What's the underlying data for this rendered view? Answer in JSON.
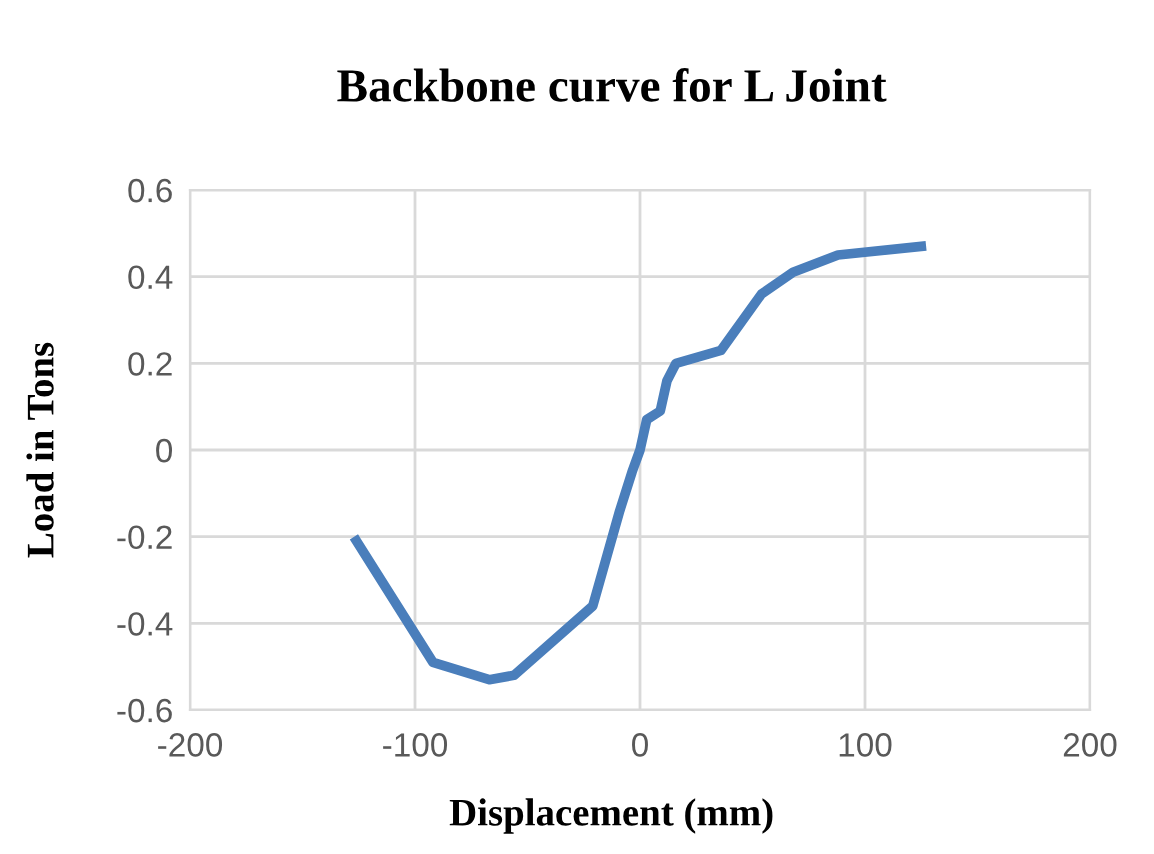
{
  "chart_data": {
    "type": "line",
    "title": "Backbone curve for L Joint",
    "xlabel": "Displacement (mm)",
    "ylabel": "Load in Tons",
    "x": [
      -126,
      -92,
      -67,
      -56,
      -21,
      -9,
      -3.5,
      0,
      3,
      9,
      12,
      16,
      36,
      54,
      68,
      88,
      125
    ],
    "series": [
      {
        "color": "#4a7ebb",
        "values": [
          -0.21,
          -0.49,
          -0.53,
          -0.52,
          -0.36,
          -0.14,
          -0.05,
          0,
          0.07,
          0.09,
          0.16,
          0.2,
          0.23,
          0.36,
          0.41,
          0.45,
          0.47
        ]
      }
    ],
    "xlim": [
      -200,
      200
    ],
    "ylim": [
      -0.6,
      0.6
    ],
    "xticks": [
      -200,
      -100,
      0,
      100,
      200
    ],
    "yticks": [
      -0.6,
      -0.4,
      -0.2,
      0,
      0.2,
      0.4,
      0.6
    ],
    "grid": true,
    "marker": "none",
    "line_style": "solid"
  }
}
